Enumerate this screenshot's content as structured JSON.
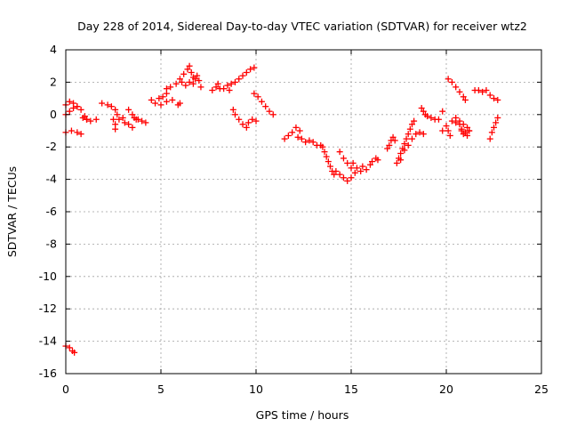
{
  "chart_data": {
    "type": "scatter",
    "title": "Day 228 of 2014, Sidereal Day-to-day VTEC variation (SDTVAR) for receiver wtz2",
    "xlabel": "GPS time / hours",
    "ylabel": "SDTVAR / TECUs",
    "xlim": [
      0,
      25
    ],
    "ylim": [
      -16,
      4
    ],
    "xticks": [
      "0",
      "5",
      "10",
      "15",
      "20",
      "25"
    ],
    "yticks": [
      "4",
      "2",
      "0",
      "-2",
      "-4",
      "-6",
      "-8",
      "-10",
      "-12",
      "-14",
      "-16"
    ],
    "grid": true,
    "marker": "plus",
    "color": "#ff0000",
    "series": [
      {
        "name": "sdtvar",
        "points": [
          [
            0.0,
            -14.3
          ],
          [
            0.2,
            -14.4
          ],
          [
            0.35,
            -14.6
          ],
          [
            0.45,
            -14.7
          ],
          [
            0.0,
            -1.1
          ],
          [
            0.3,
            -1.0
          ],
          [
            0.6,
            -1.1
          ],
          [
            0.8,
            -1.2
          ],
          [
            0.0,
            0.6
          ],
          [
            0.2,
            0.8
          ],
          [
            0.4,
            0.7
          ],
          [
            0.6,
            0.5
          ],
          [
            0.0,
            0.0
          ],
          [
            0.2,
            0.2
          ],
          [
            0.4,
            0.4
          ],
          [
            0.6,
            0.5
          ],
          [
            0.8,
            0.3
          ],
          [
            1.0,
            -0.1
          ],
          [
            1.1,
            -0.3
          ],
          [
            0.9,
            -0.2
          ],
          [
            1.1,
            -0.3
          ],
          [
            1.3,
            -0.4
          ],
          [
            1.6,
            -0.3
          ],
          [
            1.9,
            0.7
          ],
          [
            2.2,
            0.6
          ],
          [
            2.4,
            0.5
          ],
          [
            2.6,
            0.3
          ],
          [
            2.5,
            -0.3
          ],
          [
            2.7,
            0.0
          ],
          [
            2.6,
            -0.6
          ],
          [
            2.6,
            -0.9
          ],
          [
            2.8,
            -0.3
          ],
          [
            3.0,
            -0.2
          ],
          [
            3.1,
            -0.5
          ],
          [
            3.3,
            0.3
          ],
          [
            3.5,
            0.0
          ],
          [
            3.7,
            -0.3
          ],
          [
            3.3,
            -0.6
          ],
          [
            3.5,
            -0.8
          ],
          [
            3.6,
            -0.2
          ],
          [
            3.8,
            -0.3
          ],
          [
            4.0,
            -0.4
          ],
          [
            4.2,
            -0.5
          ],
          [
            4.5,
            0.9
          ],
          [
            4.7,
            0.7
          ],
          [
            4.9,
            1.0
          ],
          [
            5.1,
            1.1
          ],
          [
            5.3,
            1.3
          ],
          [
            5.0,
            0.6
          ],
          [
            5.3,
            0.8
          ],
          [
            5.6,
            0.9
          ],
          [
            5.9,
            0.6
          ],
          [
            6.0,
            0.7
          ],
          [
            5.3,
            1.6
          ],
          [
            5.5,
            1.7
          ],
          [
            5.8,
            1.9
          ],
          [
            6.1,
            2.0
          ],
          [
            6.0,
            2.2
          ],
          [
            6.2,
            2.5
          ],
          [
            6.4,
            2.8
          ],
          [
            6.5,
            3.0
          ],
          [
            6.6,
            2.6
          ],
          [
            6.7,
            2.3
          ],
          [
            6.8,
            2.2
          ],
          [
            6.9,
            2.4
          ],
          [
            7.0,
            2.1
          ],
          [
            7.1,
            1.7
          ],
          [
            6.3,
            1.8
          ],
          [
            6.5,
            2.0
          ],
          [
            6.7,
            1.9
          ],
          [
            7.7,
            1.5
          ],
          [
            7.9,
            1.7
          ],
          [
            8.0,
            1.9
          ],
          [
            8.1,
            1.6
          ],
          [
            8.3,
            1.6
          ],
          [
            8.5,
            1.8
          ],
          [
            8.6,
            1.5
          ],
          [
            8.7,
            1.9
          ],
          [
            8.9,
            2.0
          ],
          [
            9.1,
            2.2
          ],
          [
            9.3,
            2.4
          ],
          [
            9.5,
            2.6
          ],
          [
            9.7,
            2.8
          ],
          [
            9.9,
            2.9
          ],
          [
            8.8,
            0.3
          ],
          [
            8.9,
            0.0
          ],
          [
            9.1,
            -0.3
          ],
          [
            9.3,
            -0.6
          ],
          [
            9.5,
            -0.8
          ],
          [
            9.6,
            -0.5
          ],
          [
            9.8,
            -0.3
          ],
          [
            10.0,
            -0.4
          ],
          [
            9.9,
            1.3
          ],
          [
            10.1,
            1.1
          ],
          [
            10.3,
            0.8
          ],
          [
            10.5,
            0.5
          ],
          [
            10.7,
            0.2
          ],
          [
            10.9,
            0.0
          ],
          [
            11.5,
            -1.5
          ],
          [
            11.7,
            -1.3
          ],
          [
            11.9,
            -1.1
          ],
          [
            12.1,
            -0.8
          ],
          [
            12.3,
            -1.0
          ],
          [
            12.2,
            -1.4
          ],
          [
            12.4,
            -1.5
          ],
          [
            12.6,
            -1.7
          ],
          [
            12.8,
            -1.6
          ],
          [
            13.0,
            -1.7
          ],
          [
            13.2,
            -1.9
          ],
          [
            13.4,
            -1.9
          ],
          [
            13.5,
            -2.0
          ],
          [
            13.6,
            -2.3
          ],
          [
            13.7,
            -2.6
          ],
          [
            13.8,
            -2.9
          ],
          [
            13.9,
            -3.2
          ],
          [
            14.0,
            -3.5
          ],
          [
            14.1,
            -3.7
          ],
          [
            14.2,
            -3.5
          ],
          [
            14.4,
            -3.7
          ],
          [
            14.6,
            -3.9
          ],
          [
            14.8,
            -4.1
          ],
          [
            15.0,
            -3.9
          ],
          [
            15.2,
            -3.6
          ],
          [
            14.4,
            -2.3
          ],
          [
            14.6,
            -2.7
          ],
          [
            14.8,
            -3.0
          ],
          [
            15.0,
            -3.3
          ],
          [
            15.1,
            -3.0
          ],
          [
            15.3,
            -3.3
          ],
          [
            15.5,
            -3.5
          ],
          [
            15.6,
            -3.2
          ],
          [
            15.8,
            -3.4
          ],
          [
            16.0,
            -3.1
          ],
          [
            16.1,
            -2.9
          ],
          [
            16.3,
            -2.7
          ],
          [
            16.4,
            -2.8
          ],
          [
            16.9,
            -2.1
          ],
          [
            17.0,
            -1.9
          ],
          [
            17.1,
            -1.6
          ],
          [
            17.2,
            -1.4
          ],
          [
            17.3,
            -1.6
          ],
          [
            17.4,
            -3.0
          ],
          [
            17.5,
            -2.7
          ],
          [
            17.6,
            -2.4
          ],
          [
            17.7,
            -2.1
          ],
          [
            17.8,
            -1.8
          ],
          [
            17.9,
            -1.5
          ],
          [
            18.0,
            -1.2
          ],
          [
            18.1,
            -0.9
          ],
          [
            18.2,
            -0.6
          ],
          [
            18.3,
            -0.4
          ],
          [
            17.6,
            -2.8
          ],
          [
            17.8,
            -2.2
          ],
          [
            18.0,
            -1.9
          ],
          [
            18.2,
            -1.5
          ],
          [
            18.4,
            -1.2
          ],
          [
            18.6,
            -1.1
          ],
          [
            18.8,
            -1.2
          ],
          [
            18.7,
            0.4
          ],
          [
            18.8,
            0.2
          ],
          [
            18.9,
            0.0
          ],
          [
            19.0,
            -0.1
          ],
          [
            19.2,
            -0.2
          ],
          [
            19.4,
            -0.3
          ],
          [
            19.6,
            -0.3
          ],
          [
            19.8,
            0.2
          ],
          [
            19.8,
            -1.0
          ],
          [
            20.0,
            -0.7
          ],
          [
            20.1,
            -1.0
          ],
          [
            20.2,
            -1.3
          ],
          [
            20.3,
            -0.4
          ],
          [
            20.5,
            -0.5
          ],
          [
            20.7,
            -0.6
          ],
          [
            20.8,
            -0.9
          ],
          [
            20.8,
            -1.0
          ],
          [
            20.9,
            -1.2
          ],
          [
            21.0,
            -1.1
          ],
          [
            21.1,
            -1.3
          ],
          [
            21.2,
            -1.0
          ],
          [
            20.5,
            -0.2
          ],
          [
            20.7,
            -0.4
          ],
          [
            20.9,
            -0.6
          ],
          [
            21.1,
            -0.8
          ],
          [
            21.2,
            -1.0
          ],
          [
            20.1,
            2.2
          ],
          [
            20.3,
            2.0
          ],
          [
            20.5,
            1.7
          ],
          [
            20.7,
            1.4
          ],
          [
            20.9,
            1.1
          ],
          [
            21.0,
            0.9
          ],
          [
            21.5,
            1.5
          ],
          [
            21.7,
            1.5
          ],
          [
            21.9,
            1.4
          ],
          [
            22.1,
            1.5
          ],
          [
            22.3,
            1.2
          ],
          [
            22.5,
            1.0
          ],
          [
            22.7,
            0.9
          ],
          [
            22.3,
            -1.5
          ],
          [
            22.4,
            -1.1
          ],
          [
            22.5,
            -0.8
          ],
          [
            22.6,
            -0.5
          ],
          [
            22.7,
            -0.2
          ]
        ]
      }
    ]
  }
}
